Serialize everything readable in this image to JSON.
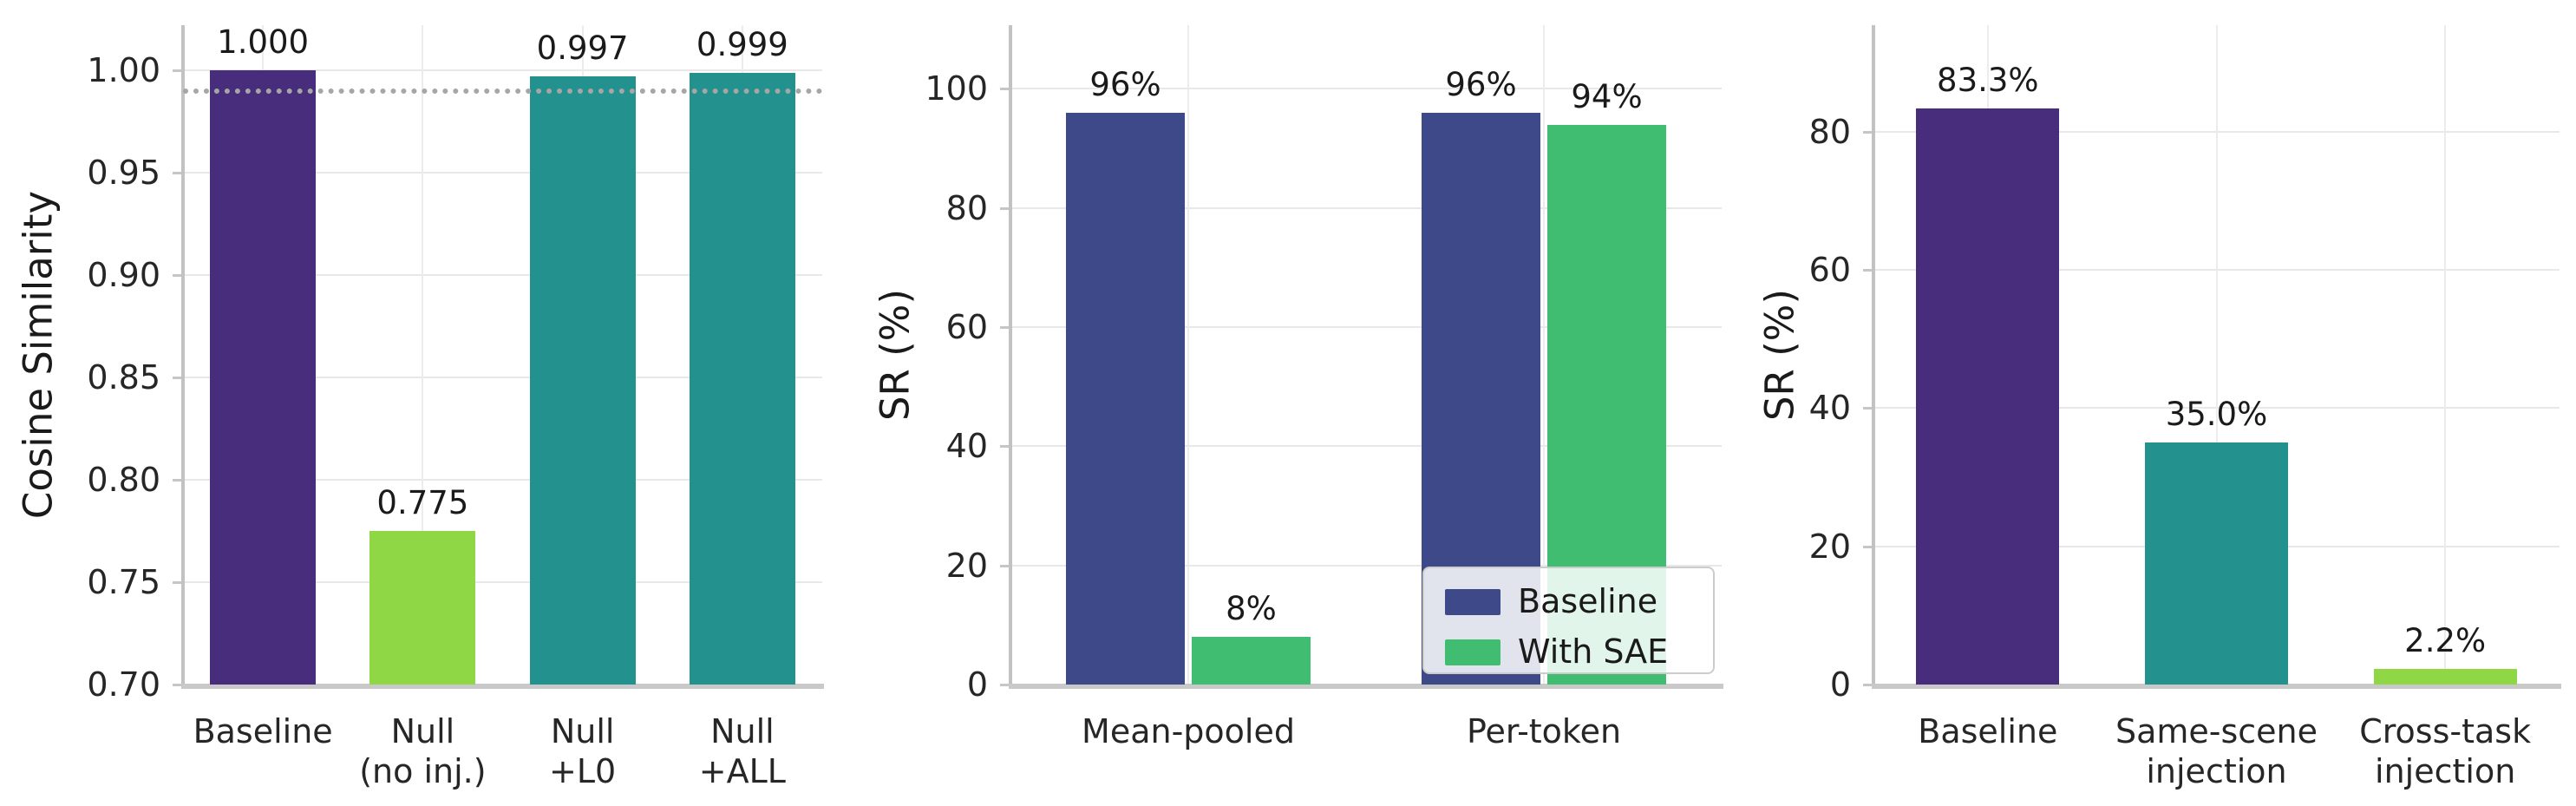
{
  "figure": {
    "background": "#ffffff",
    "text_color": "#262626",
    "grid_color": "#e8e8e8"
  },
  "chart_data": [
    {
      "type": "bar",
      "title": "",
      "xlabel": "",
      "ylabel": "Cosine Similarity",
      "categories": [
        "Baseline",
        "Null\n(no inj.)",
        "Null\n+L0",
        "Null\n+ALL"
      ],
      "values": [
        1.0,
        0.775,
        0.997,
        0.999
      ],
      "value_labels": [
        "1.000",
        "0.775",
        "0.997",
        "0.999"
      ],
      "bar_colors": [
        "#472d7b",
        "#8fd744",
        "#23918d",
        "#23918d"
      ],
      "ylim": [
        0.7,
        1.0221
      ],
      "yticks": [
        0.7,
        0.75,
        0.8,
        0.85,
        0.9,
        0.95,
        1.0
      ],
      "ytick_labels": [
        "0.70",
        "0.75",
        "0.80",
        "0.85",
        "0.90",
        "0.95",
        "1.00"
      ],
      "ref_line": {
        "value": 0.99,
        "style": "dotted",
        "color": "#a6a6a6"
      },
      "grid": true,
      "legend": null
    },
    {
      "type": "grouped-bar",
      "title": "",
      "xlabel": "",
      "ylabel": "SR (%)",
      "categories": [
        "Mean-pooled",
        "Per-token"
      ],
      "series": [
        {
          "name": "Baseline",
          "color": "#3e4989",
          "values": [
            96,
            96
          ],
          "value_labels": [
            "96%",
            "96%"
          ]
        },
        {
          "name": "With SAE",
          "color": "#41bd72",
          "values": [
            8,
            94
          ],
          "value_labels": [
            "8%",
            "94%"
          ]
        }
      ],
      "ylim": [
        0,
        110.7
      ],
      "yticks": [
        0,
        20,
        40,
        60,
        80,
        100
      ],
      "ytick_labels": [
        "0",
        "20",
        "40",
        "60",
        "80",
        "100"
      ],
      "ref_line": null,
      "grid": true,
      "legend": {
        "position": "lower right",
        "entries": [
          "Baseline",
          "With SAE"
        ]
      }
    },
    {
      "type": "bar",
      "title": "",
      "xlabel": "",
      "ylabel": "SR (%)",
      "categories": [
        "Baseline",
        "Same-scene\ninjection",
        "Cross-task\ninjection"
      ],
      "values": [
        83.3,
        35.0,
        2.2
      ],
      "value_labels": [
        "83.3%",
        "35.0%",
        "2.2%"
      ],
      "bar_colors": [
        "#472d7b",
        "#23918d",
        "#8fd744"
      ],
      "ylim": [
        0,
        95.4
      ],
      "yticks": [
        0,
        20,
        40,
        60,
        80
      ],
      "ytick_labels": [
        "0",
        "20",
        "40",
        "60",
        "80"
      ],
      "ref_line": null,
      "grid": true,
      "legend": null
    }
  ]
}
